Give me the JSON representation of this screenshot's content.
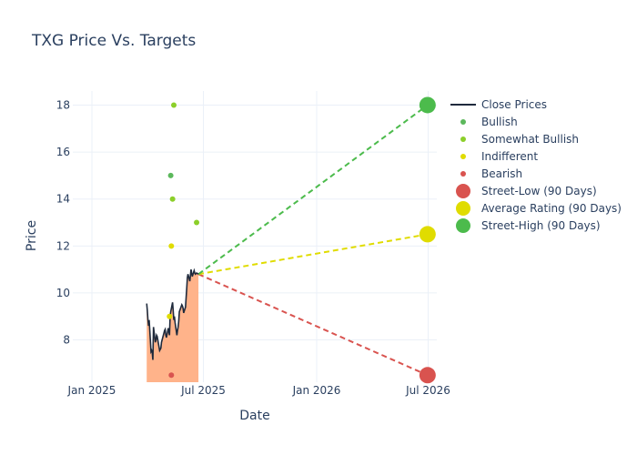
{
  "chart_data": {
    "type": "scatter",
    "title": "TXG Price Vs. Targets",
    "xlabel": "Date",
    "ylabel": "Price",
    "x_range": [
      "2024-12-01",
      "2026-07-15"
    ],
    "y_range": [
      6.2,
      18.6
    ],
    "x_ticks": [
      {
        "date": "2025-01-01",
        "label": "Jan 2025"
      },
      {
        "date": "2025-07-01",
        "label": "Jul 2025"
      },
      {
        "date": "2026-01-01",
        "label": "Jan 2026"
      },
      {
        "date": "2026-07-01",
        "label": "Jul 2026"
      }
    ],
    "y_ticks": [
      8,
      10,
      12,
      14,
      16,
      18
    ],
    "grid": true,
    "legend_position": "right",
    "close_prices": {
      "name": "Close Prices",
      "color": "#1f2a3c",
      "fill_color": "#ffb38a",
      "points": [
        [
          "2025-03-31",
          9.55
        ],
        [
          "2025-04-01",
          9.25
        ],
        [
          "2025-04-02",
          8.85
        ],
        [
          "2025-04-03",
          8.6
        ],
        [
          "2025-04-04",
          8.85
        ],
        [
          "2025-04-07",
          7.5
        ],
        [
          "2025-04-08",
          7.55
        ],
        [
          "2025-04-09",
          7.45
        ],
        [
          "2025-04-10",
          7.15
        ],
        [
          "2025-04-11",
          8.55
        ],
        [
          "2025-04-14",
          7.9
        ],
        [
          "2025-04-15",
          8.0
        ],
        [
          "2025-04-16",
          8.2
        ],
        [
          "2025-04-17",
          8.15
        ],
        [
          "2025-04-21",
          7.55
        ],
        [
          "2025-04-22",
          7.6
        ],
        [
          "2025-04-23",
          7.65
        ],
        [
          "2025-04-24",
          7.9
        ],
        [
          "2025-04-25",
          8.0
        ],
        [
          "2025-04-28",
          8.3
        ],
        [
          "2025-04-29",
          8.4
        ],
        [
          "2025-04-30",
          8.45
        ],
        [
          "2025-05-01",
          8.2
        ],
        [
          "2025-05-02",
          8.1
        ],
        [
          "2025-05-05",
          8.5
        ],
        [
          "2025-05-06",
          8.35
        ],
        [
          "2025-05-07",
          8.2
        ],
        [
          "2025-05-08",
          9.0
        ],
        [
          "2025-05-09",
          9.2
        ],
        [
          "2025-05-12",
          9.6
        ],
        [
          "2025-05-13",
          9.25
        ],
        [
          "2025-05-14",
          8.85
        ],
        [
          "2025-05-15",
          9.0
        ],
        [
          "2025-05-16",
          8.75
        ],
        [
          "2025-05-19",
          8.2
        ],
        [
          "2025-05-20",
          8.4
        ],
        [
          "2025-05-21",
          8.55
        ],
        [
          "2025-05-22",
          8.8
        ],
        [
          "2025-05-23",
          9.2
        ],
        [
          "2025-05-27",
          9.5
        ],
        [
          "2025-05-28",
          9.45
        ],
        [
          "2025-05-29",
          9.35
        ],
        [
          "2025-05-30",
          9.15
        ],
        [
          "2025-06-02",
          9.4
        ],
        [
          "2025-06-03",
          9.8
        ],
        [
          "2025-06-04",
          10.2
        ],
        [
          "2025-06-05",
          10.65
        ],
        [
          "2025-06-06",
          10.8
        ],
        [
          "2025-06-09",
          10.5
        ],
        [
          "2025-06-10",
          10.75
        ],
        [
          "2025-06-11",
          11.0
        ],
        [
          "2025-06-12",
          10.85
        ],
        [
          "2025-06-13",
          10.7
        ],
        [
          "2025-06-16",
          10.95
        ],
        [
          "2025-06-17",
          10.85
        ],
        [
          "2025-06-18",
          10.8
        ],
        [
          "2025-06-20",
          10.85
        ],
        [
          "2025-06-23",
          10.8
        ]
      ]
    },
    "ratings": [
      {
        "name": "Bullish",
        "color": "#5cb85c",
        "points": [
          [
            "2025-05-09",
            15.0
          ]
        ]
      },
      {
        "name": "Somewhat Bullish",
        "color": "#8ccf2a",
        "points": [
          [
            "2025-05-14",
            18.0
          ],
          [
            "2025-05-12",
            14.0
          ],
          [
            "2025-06-20",
            13.0
          ]
        ]
      },
      {
        "name": "Indifferent",
        "color": "#e0dc00",
        "points": [
          [
            "2025-05-10",
            12.0
          ],
          [
            "2025-05-07",
            9.0
          ]
        ]
      },
      {
        "name": "Bearish",
        "color": "#d9534f",
        "points": [
          [
            "2025-05-10",
            6.5
          ]
        ]
      }
    ],
    "targets": {
      "start": [
        "2025-06-23",
        10.8
      ],
      "end_date": "2026-06-30",
      "lines": [
        {
          "name": "Street-Low (90 Days)",
          "value": 6.5,
          "color": "#d9534f"
        },
        {
          "name": "Average Rating (90 Days)",
          "value": 12.5,
          "color": "#e0dc00"
        },
        {
          "name": "Street-High (90 Days)",
          "value": 18.0,
          "color": "#4cbb4c"
        }
      ]
    },
    "legend": [
      {
        "name": "Close Prices",
        "kind": "line",
        "color": "#1f2a3c"
      },
      {
        "name": "Bullish",
        "kind": "dot",
        "color": "#5cb85c"
      },
      {
        "name": "Somewhat Bullish",
        "kind": "dot",
        "color": "#8ccf2a"
      },
      {
        "name": "Indifferent",
        "kind": "dot",
        "color": "#e0dc00"
      },
      {
        "name": "Bearish",
        "kind": "dot",
        "color": "#d9534f"
      },
      {
        "name": "Street-Low (90 Days)",
        "kind": "big",
        "color": "#d9534f"
      },
      {
        "name": "Average Rating (90 Days)",
        "kind": "big",
        "color": "#e0dc00"
      },
      {
        "name": "Street-High (90 Days)",
        "kind": "big",
        "color": "#4cbb4c"
      }
    ]
  }
}
